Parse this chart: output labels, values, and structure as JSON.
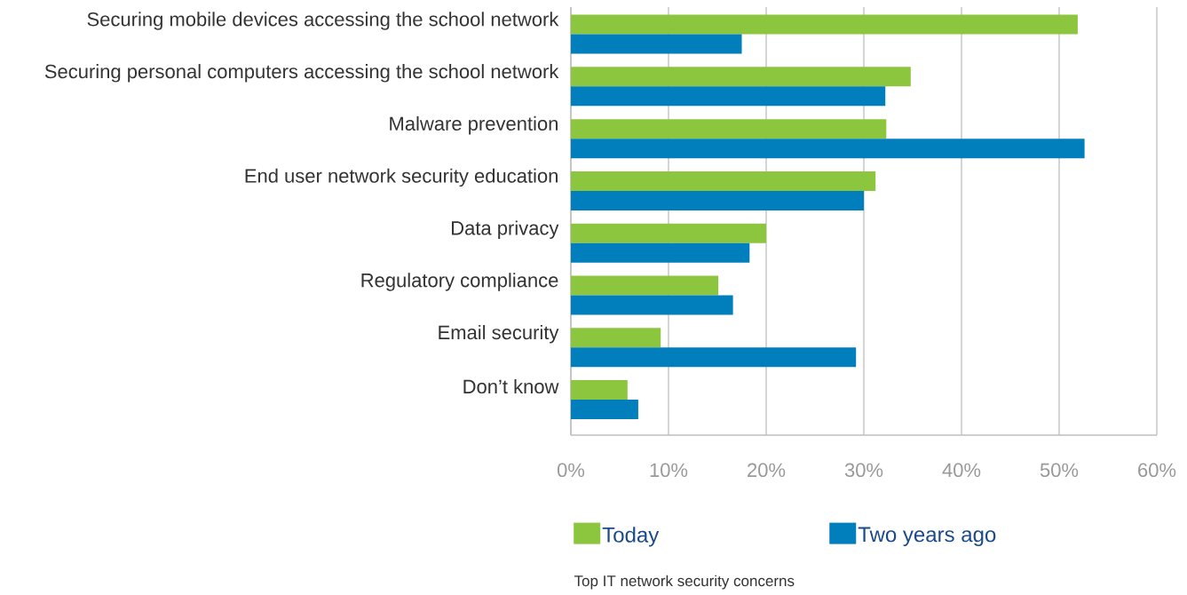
{
  "chart_data": {
    "type": "bar",
    "orientation": "horizontal",
    "categories": [
      "Securing mobile devices accessing the school network",
      "Securing personal computers accessing the school network",
      "Malware prevention",
      "End user network security education",
      "Data privacy",
      "Regulatory compliance",
      "Email security",
      "Don’t know"
    ],
    "series": [
      {
        "name": "Today",
        "color": "#8cc63f",
        "values": [
          51.9,
          34.8,
          32.3,
          31.2,
          20.0,
          15.1,
          9.2,
          5.8
        ]
      },
      {
        "name": "Two years ago",
        "color": "#007fbc",
        "values": [
          17.5,
          32.2,
          52.6,
          30.0,
          18.3,
          16.6,
          29.2,
          6.9
        ]
      }
    ],
    "xlim": [
      0,
      60
    ],
    "xticks": [
      {
        "value": 0,
        "label": "0%"
      },
      {
        "value": 10,
        "label": "10%"
      },
      {
        "value": 20,
        "label": "20%"
      },
      {
        "value": 30,
        "label": "30%"
      },
      {
        "value": 40,
        "label": "40%"
      },
      {
        "value": 50,
        "label": "50%"
      },
      {
        "value": 60,
        "label": "60%"
      }
    ],
    "grid": "x",
    "legend": "bottom",
    "annotations": [
      "Top IT network security concerns"
    ]
  }
}
